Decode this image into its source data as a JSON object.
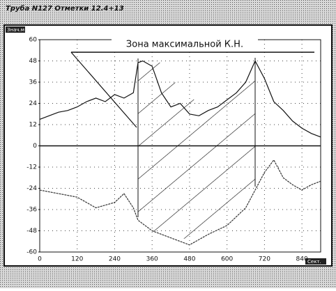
{
  "window_title": "Труба N127 Отметки 12.4+13",
  "corner_label": "Знач.м",
  "corner_label_right": "Сект.",
  "chart_data": {
    "type": "line",
    "annotation": "Зона максимальной К.Н.",
    "xlim": [
      0,
      900
    ],
    "ylim": [
      -60,
      60
    ],
    "xticks": [
      0,
      120,
      240,
      360,
      480,
      600,
      720,
      840
    ],
    "yticks": [
      60,
      48,
      36,
      24,
      12,
      0,
      -12,
      -24,
      -36,
      -48,
      -60
    ],
    "grid": true,
    "series": [
      {
        "color": "#111111",
        "dash": false,
        "x": [
          0,
          30,
          60,
          90,
          120,
          150,
          180,
          210,
          240,
          270,
          300,
          315,
          330,
          360,
          390,
          420,
          450,
          480,
          510,
          540,
          570,
          600,
          630,
          660,
          690,
          720,
          750,
          780,
          810,
          840,
          870,
          900
        ],
        "values": [
          15,
          17,
          19,
          20,
          22,
          25,
          27,
          25,
          29,
          27,
          30,
          47,
          48,
          45,
          30,
          22,
          24,
          18,
          17,
          20,
          22,
          26,
          30,
          36,
          48,
          38,
          25,
          20,
          14,
          10,
          7,
          5
        ]
      },
      {
        "color": "#333333",
        "dash": true,
        "x": [
          0,
          60,
          120,
          180,
          240,
          270,
          300,
          315,
          360,
          420,
          480,
          540,
          600,
          660,
          690,
          720,
          750,
          780,
          810,
          840,
          870,
          900
        ],
        "values": [
          -25,
          -27,
          -29,
          -35,
          -32,
          -27,
          -35,
          -42,
          -48,
          -52,
          -56,
          -50,
          -45,
          -35,
          -25,
          -15,
          -8,
          -18,
          -22,
          -25,
          -22,
          -20
        ]
      }
    ]
  }
}
